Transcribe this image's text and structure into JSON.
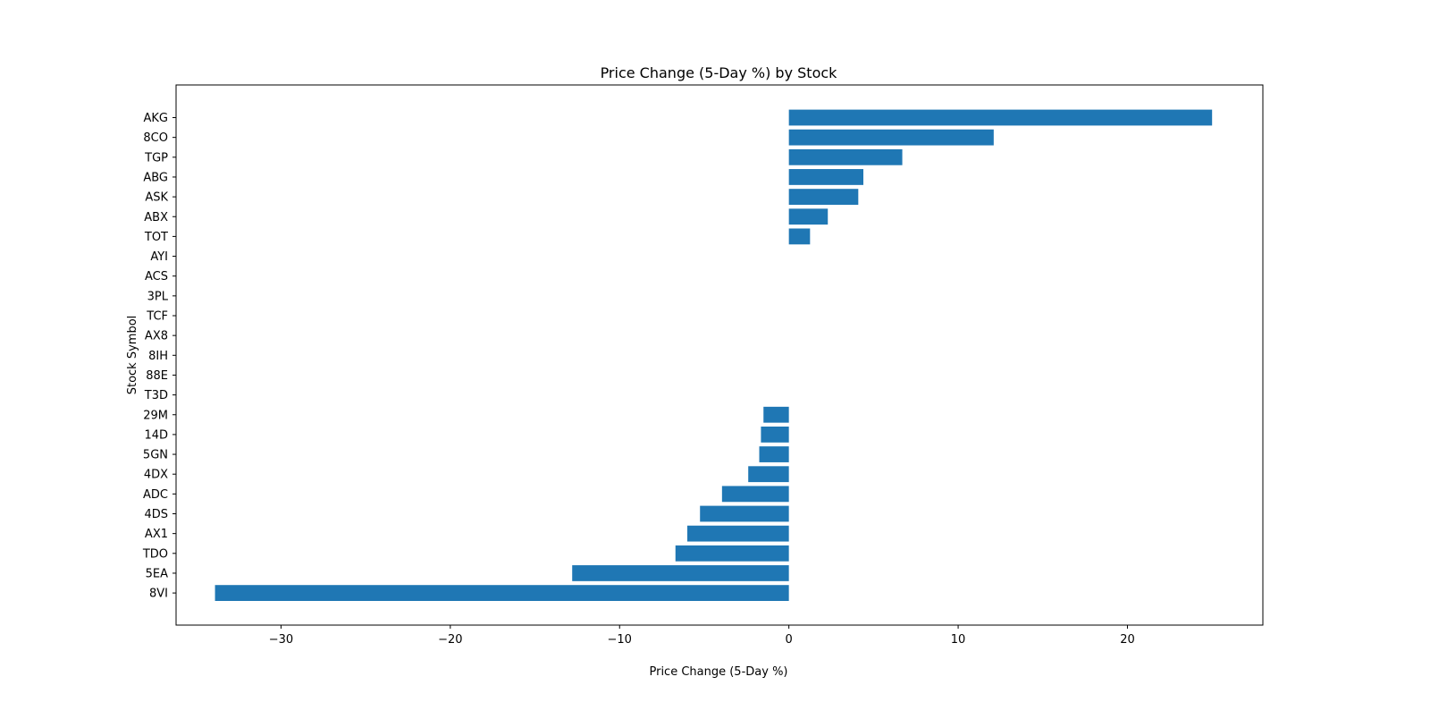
{
  "chart_data": {
    "type": "bar",
    "orientation": "horizontal",
    "title": "Price Change (5-Day %) by Stock",
    "xlabel": "Price Change (5-Day %)",
    "ylabel": "Stock Symbol",
    "categories": [
      "AKG",
      "8CO",
      "TGP",
      "ABG",
      "ASK",
      "ABX",
      "TOT",
      "AYI",
      "ACS",
      "3PL",
      "TCF",
      "AX8",
      "8IH",
      "88E",
      "T3D",
      "29M",
      "14D",
      "5GN",
      "4DX",
      "ADC",
      "4DS",
      "AX1",
      "TDO",
      "5EA",
      "8VI"
    ],
    "values": [
      25.0,
      12.1,
      6.7,
      4.4,
      4.1,
      2.3,
      1.25,
      0,
      0,
      0,
      0,
      0,
      0,
      0,
      0,
      -1.5,
      -1.65,
      -1.75,
      -2.4,
      -3.95,
      -5.25,
      -6.0,
      -6.7,
      -12.8,
      -33.9
    ],
    "xlim": [
      -36.2,
      28.0
    ],
    "xticks": [
      -30,
      -20,
      -10,
      0,
      10,
      20
    ],
    "xtick_labels": [
      "−30",
      "−20",
      "−10",
      "0",
      "10",
      "20"
    ],
    "bar_color": "#1f77b4",
    "grid": false,
    "legend": "none"
  }
}
